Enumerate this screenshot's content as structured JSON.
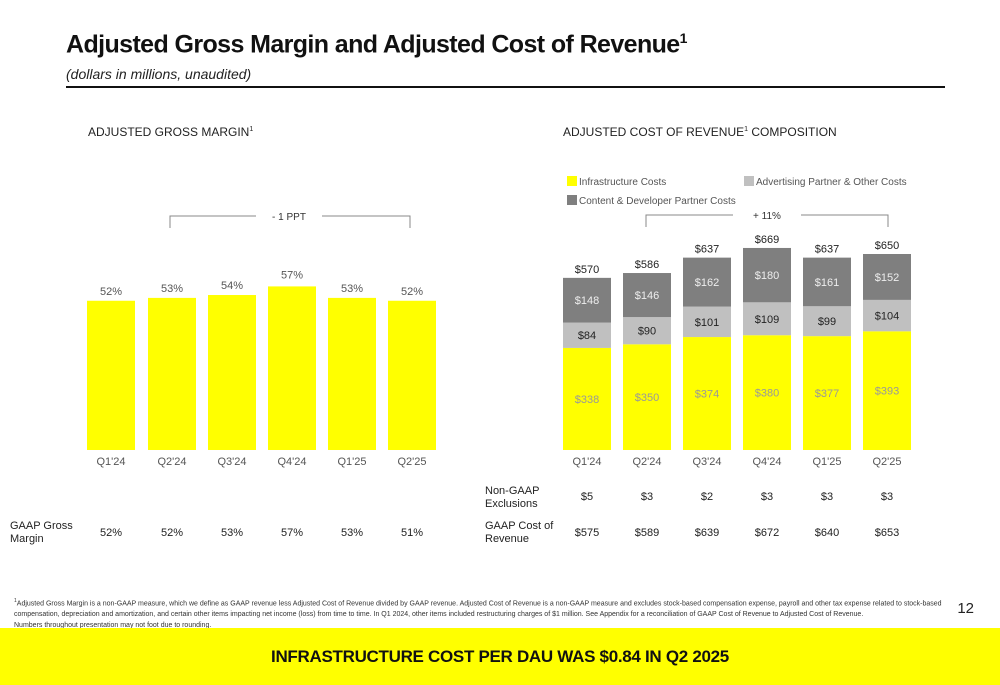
{
  "title": "Adjusted Gross Margin and Adjusted Cost of Revenue",
  "title_sup": "1",
  "subtitle": "(dollars in millions, unaudited)",
  "left_section": "ADJUSTED GROSS MARGIN",
  "right_section_a": "ADJUSTED COST OF REVENUE",
  "right_section_b": " COMPOSITION",
  "sup": "1",
  "chart_data": [
    {
      "type": "bar",
      "title": "ADJUSTED GROSS MARGIN",
      "categories": [
        "Q1'24",
        "Q2'24",
        "Q3'24",
        "Q4'24",
        "Q1'25",
        "Q2'25"
      ],
      "values": [
        52,
        53,
        54,
        57,
        53,
        52
      ],
      "labels": [
        "52%",
        "53%",
        "54%",
        "57%",
        "53%",
        "52%"
      ],
      "annotation": "- 1 PPT",
      "ylim": [
        0,
        100
      ],
      "color": "#ffff00"
    },
    {
      "type": "bar",
      "stacked": true,
      "title": "ADJUSTED COST OF REVENUE COMPOSITION",
      "categories": [
        "Q1'24",
        "Q2'24",
        "Q3'24",
        "Q4'24",
        "Q1'25",
        "Q2'25"
      ],
      "series": [
        {
          "name": "Infrastructure Costs",
          "color": "#ffff00",
          "values": [
            338,
            350,
            374,
            380,
            377,
            393
          ]
        },
        {
          "name": "Advertising Partner & Other Costs",
          "color": "#c0c0c0",
          "values": [
            84,
            90,
            101,
            109,
            99,
            104
          ]
        },
        {
          "name": "Content & Developer Partner Costs",
          "color": "#7f7f7f",
          "values": [
            148,
            146,
            162,
            180,
            161,
            152
          ]
        }
      ],
      "totals": [
        570,
        586,
        637,
        669,
        637,
        650
      ],
      "annotation": "+ 11%",
      "ylim": [
        0,
        700
      ]
    }
  ],
  "gaap_gross_margin": {
    "label": "GAAP Gross Margin",
    "values": [
      "52%",
      "52%",
      "53%",
      "57%",
      "53%",
      "51%"
    ]
  },
  "non_gaap_exclusions": {
    "label": "Non-GAAP Exclusions",
    "values": [
      "$5",
      "$3",
      "$2",
      "$3",
      "$3",
      "$3"
    ]
  },
  "gaap_cost_of_revenue": {
    "label": "GAAP Cost of Revenue",
    "values": [
      "$575",
      "$589",
      "$639",
      "$672",
      "$640",
      "$653"
    ]
  },
  "footnote": [
    "Adjusted Gross Margin is a non-GAAP measure, which we define as GAAP revenue less Adjusted Cost of Revenue divided by GAAP revenue. Adjusted Cost of Revenue is a non-GAAP measure and excludes stock-based compensation expense, payroll and other tax expense related to stock-based compensation, depreciation and amortization, and certain other items impacting net income (loss) from time to time. In Q1 2024, other items included restructuring charges of $1 million. See Appendix for a reconciliation of GAAP Cost of Revenue to Adjusted Cost of Revenue.",
    "Numbers throughout presentation may not foot due to rounding."
  ],
  "page_number": "12",
  "banner": "INFRASTRUCTURE COST PER DAU WAS $0.84 IN Q2 2025"
}
